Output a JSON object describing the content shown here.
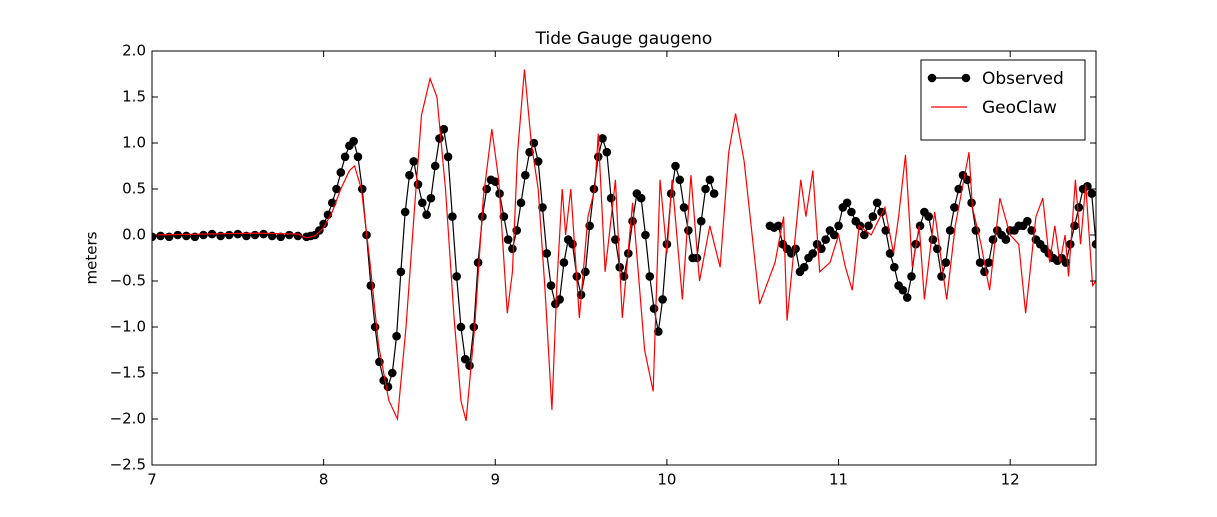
{
  "chart_data": {
    "type": "line",
    "title": "Tide Gauge gaugeno",
    "y_label": "meters",
    "xlim": [
      7,
      12.5
    ],
    "ylim": [
      -2.5,
      2.0
    ],
    "xticks": [
      7,
      8,
      9,
      10,
      11,
      12
    ],
    "yticks": [
      {
        "value": -2.5,
        "label": "−2.5"
      },
      {
        "value": -2.0,
        "label": "−2.0"
      },
      {
        "value": -1.5,
        "label": "−1.5"
      },
      {
        "value": -1.0,
        "label": "−1.0"
      },
      {
        "value": -0.5,
        "label": "−0.5"
      },
      {
        "value": 0,
        "label": "0.0"
      },
      {
        "value": 0.5,
        "label": "0.5"
      },
      {
        "value": 1.0,
        "label": "1.0"
      },
      {
        "value": 1.5,
        "label": "1.5"
      },
      {
        "value": 2.0,
        "label": "2.0"
      }
    ],
    "legend": "upper right",
    "series": [
      {
        "name": "Observed",
        "color": "#000000",
        "marker": "circle",
        "x": [
          7.0,
          7.05,
          7.1,
          7.15,
          7.2,
          7.25,
          7.3,
          7.35,
          7.4,
          7.45,
          7.5,
          7.55,
          7.6,
          7.65,
          7.7,
          7.75,
          7.8,
          7.85,
          7.9,
          7.925,
          7.95,
          7.975,
          8.0,
          8.025,
          8.05,
          8.075,
          8.1,
          8.125,
          8.15,
          8.175,
          8.2,
          8.225,
          8.25,
          8.275,
          8.3,
          8.325,
          8.35,
          8.375,
          8.4,
          8.425,
          8.45,
          8.475,
          8.5,
          8.525,
          8.55,
          8.575,
          8.6,
          8.625,
          8.65,
          8.675,
          8.7,
          8.725,
          8.75,
          8.775,
          8.8,
          8.825,
          8.85,
          8.875,
          8.9,
          8.925,
          8.95,
          8.975,
          9.0,
          9.025,
          9.05,
          9.075,
          9.1,
          9.125,
          9.15,
          9.175,
          9.2,
          9.225,
          9.25,
          9.275,
          9.3,
          9.325,
          9.35,
          9.375,
          9.4,
          9.425,
          9.45,
          9.475,
          9.5,
          9.525,
          9.55,
          9.575,
          9.6,
          9.625,
          9.65,
          9.675,
          9.7,
          9.725,
          9.75,
          9.775,
          9.8,
          9.825,
          9.85,
          9.875,
          9.9,
          9.925,
          9.95,
          9.975,
          10.0,
          10.025,
          10.05,
          10.075,
          10.1,
          10.125,
          10.15,
          10.175,
          10.2,
          10.225,
          10.25,
          10.275,
          10.4,
          10.6,
          10.625,
          10.65,
          10.675,
          10.7,
          10.725,
          10.75,
          10.775,
          10.8,
          10.825,
          10.85,
          10.875,
          10.9,
          10.925,
          10.95,
          10.975,
          11.0,
          11.025,
          11.05,
          11.075,
          11.1,
          11.125,
          11.15,
          11.175,
          11.2,
          11.225,
          11.25,
          11.275,
          11.3,
          11.325,
          11.35,
          11.375,
          11.4,
          11.425,
          11.45,
          11.475,
          11.5,
          11.525,
          11.55,
          11.575,
          11.6,
          11.625,
          11.65,
          11.675,
          11.7,
          11.725,
          11.75,
          11.775,
          11.8,
          11.825,
          11.85,
          11.875,
          11.9,
          11.925,
          11.95,
          11.975,
          12.0,
          12.025,
          12.05,
          12.075,
          12.1,
          12.125,
          12.15,
          12.175,
          12.2,
          12.225,
          12.25,
          12.275,
          12.3,
          12.325,
          12.35,
          12.375,
          12.4,
          12.425,
          12.45,
          12.475,
          12.5
        ],
        "values": [
          -0.02,
          -0.01,
          -0.02,
          0.0,
          -0.01,
          -0.02,
          0.0,
          0.01,
          -0.01,
          0.0,
          0.01,
          -0.01,
          0.0,
          0.01,
          -0.01,
          -0.02,
          0.0,
          -0.01,
          -0.02,
          -0.01,
          0.0,
          0.05,
          0.12,
          0.22,
          0.35,
          0.5,
          0.68,
          0.85,
          0.97,
          1.02,
          0.85,
          0.5,
          0.0,
          -0.55,
          -1.0,
          -1.38,
          -1.58,
          -1.65,
          -1.5,
          -1.1,
          -0.4,
          0.25,
          0.65,
          0.8,
          0.55,
          0.35,
          0.22,
          0.4,
          0.75,
          1.05,
          1.15,
          0.85,
          0.2,
          -0.45,
          -1.0,
          -1.35,
          -1.42,
          -1.0,
          -0.3,
          0.2,
          0.5,
          0.6,
          0.58,
          0.45,
          0.2,
          -0.05,
          -0.15,
          0.05,
          0.35,
          0.65,
          0.9,
          1.0,
          0.8,
          0.3,
          -0.2,
          -0.55,
          -0.75,
          -0.7,
          -0.3,
          -0.05,
          -0.1,
          -0.45,
          -0.65,
          -0.4,
          0.1,
          0.5,
          0.85,
          1.05,
          0.9,
          0.4,
          -0.05,
          -0.35,
          -0.45,
          -0.2,
          0.15,
          0.45,
          0.4,
          0.0,
          -0.45,
          -0.8,
          -1.05,
          -0.7,
          -0.1,
          0.45,
          0.75,
          0.6,
          0.3,
          0.05,
          -0.25,
          -0.25,
          0.15,
          0.5,
          0.6,
          0.45,
          null,
          0.1,
          0.08,
          0.1,
          -0.1,
          -0.15,
          -0.2,
          -0.15,
          -0.4,
          -0.35,
          -0.25,
          -0.2,
          -0.1,
          -0.15,
          -0.05,
          0.05,
          0.0,
          0.1,
          0.3,
          0.35,
          0.25,
          0.15,
          0.1,
          0.0,
          0.1,
          0.2,
          0.35,
          0.25,
          0.05,
          -0.2,
          -0.35,
          -0.55,
          -0.6,
          -0.68,
          -0.45,
          -0.1,
          0.1,
          0.25,
          0.2,
          -0.05,
          -0.15,
          -0.45,
          -0.3,
          0.05,
          0.3,
          0.5,
          0.65,
          0.6,
          0.35,
          0.05,
          -0.3,
          -0.4,
          -0.3,
          -0.05,
          0.05,
          0.0,
          -0.05,
          0.05,
          0.05,
          0.1,
          0.1,
          0.15,
          0.05,
          -0.05,
          -0.1,
          -0.15,
          -0.2,
          -0.25,
          -0.28,
          -0.25,
          -0.3,
          -0.1,
          0.1,
          0.3,
          0.5,
          0.53,
          0.45,
          -0.1
        ]
      },
      {
        "name": "GeoClaw",
        "color": "#ff0000",
        "x": [
          7.0,
          7.3,
          7.6,
          7.85,
          7.9,
          7.95,
          8.0,
          8.05,
          8.1,
          8.15,
          8.18,
          8.22,
          8.27,
          8.32,
          8.38,
          8.43,
          8.48,
          8.53,
          8.57,
          8.62,
          8.66,
          8.71,
          8.76,
          8.8,
          8.83,
          8.88,
          8.93,
          8.98,
          9.02,
          9.07,
          9.1,
          9.13,
          9.17,
          9.21,
          9.25,
          9.29,
          9.33,
          9.36,
          9.39,
          9.41,
          9.44,
          9.49,
          9.54,
          9.58,
          9.6,
          9.64,
          9.7,
          9.74,
          9.8,
          9.87,
          9.92,
          9.96,
          10.0,
          10.03,
          10.09,
          10.14,
          10.19,
          10.25,
          10.31,
          10.36,
          10.4,
          10.45,
          10.54,
          10.63,
          10.68,
          10.7,
          10.78,
          10.81,
          10.85,
          10.89,
          10.95,
          11.0,
          11.04,
          11.08,
          11.12,
          11.19,
          11.27,
          11.32,
          11.35,
          11.39,
          11.43,
          11.47,
          11.5,
          11.56,
          11.63,
          11.68,
          11.76,
          11.78,
          11.83,
          11.88,
          11.94,
          12.0,
          12.05,
          12.09,
          12.15,
          12.19,
          12.23,
          12.26,
          12.29,
          12.32,
          12.34,
          12.38,
          12.41,
          12.44,
          12.48,
          12.5
        ],
        "values": [
          0.0,
          0.01,
          0.02,
          0.01,
          -0.03,
          -0.01,
          0.08,
          0.25,
          0.5,
          0.7,
          0.75,
          0.5,
          -0.3,
          -1.2,
          -1.8,
          -2.0,
          -1.0,
          0.3,
          1.3,
          1.7,
          1.5,
          0.5,
          -0.9,
          -1.8,
          -2.02,
          -1.0,
          0.4,
          1.15,
          0.6,
          -0.85,
          -0.4,
          0.9,
          1.8,
          1.0,
          0.5,
          -0.6,
          -1.9,
          -0.5,
          0.5,
          0.0,
          0.5,
          -0.9,
          0.2,
          0.5,
          1.1,
          -0.4,
          0.6,
          -0.9,
          0.35,
          -1.25,
          -1.7,
          0.6,
          -0.2,
          0.6,
          -0.7,
          0.65,
          -0.5,
          0.1,
          -0.35,
          0.9,
          1.32,
          0.8,
          -0.75,
          -0.3,
          0.2,
          -0.93,
          0.6,
          0.2,
          0.7,
          -0.4,
          -0.3,
          0.0,
          -0.35,
          -0.6,
          0.1,
          0.0,
          0.3,
          -0.2,
          0.2,
          0.87,
          -0.35,
          0.1,
          -0.7,
          0.25,
          -0.7,
          0.1,
          0.9,
          0.3,
          -0.1,
          -0.6,
          0.4,
          0.0,
          -0.1,
          -0.85,
          0.2,
          0.4,
          -0.3,
          0.1,
          -0.3,
          0.0,
          -0.45,
          0.6,
          -0.1,
          0.55,
          -0.55,
          -0.5
        ]
      }
    ]
  }
}
